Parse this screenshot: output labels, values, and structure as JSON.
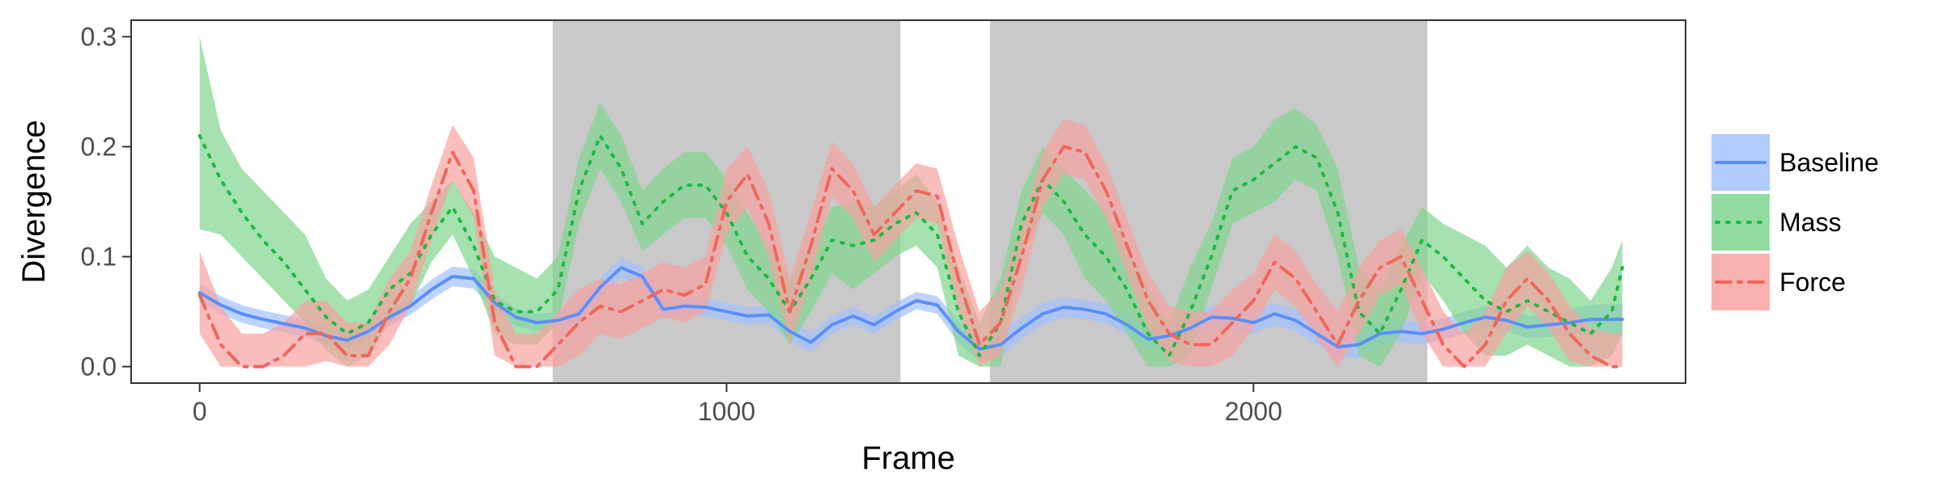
{
  "chart_data": {
    "type": "line",
    "xlabel": "Frame",
    "ylabel": "Divergence",
    "xlim": [
      -130,
      2820
    ],
    "ylim": [
      -0.015,
      0.315
    ],
    "x_ticks": [
      0,
      1000,
      2000
    ],
    "x_tick_labels": [
      "0",
      "1000",
      "2000"
    ],
    "y_ticks": [
      0.0,
      0.1,
      0.2,
      0.3
    ],
    "y_tick_labels": [
      "0.0",
      "0.1",
      "0.2",
      "0.3"
    ],
    "grid": false,
    "legend_position": "right",
    "shaded_regions": [
      {
        "start": 670,
        "end": 1330,
        "color": "#c9c9c9"
      },
      {
        "start": 1500,
        "end": 2330,
        "color": "#c9c9c9"
      }
    ],
    "series": [
      {
        "name": "Baseline",
        "color": "#5b8ff9",
        "band_color": "#a3c2ff",
        "line_style": "solid",
        "x": [
          0,
          40,
          80,
          120,
          160,
          200,
          240,
          280,
          320,
          360,
          400,
          440,
          480,
          520,
          560,
          600,
          640,
          680,
          720,
          760,
          800,
          840,
          880,
          920,
          960,
          1000,
          1040,
          1080,
          1120,
          1160,
          1200,
          1240,
          1280,
          1320,
          1360,
          1400,
          1440,
          1480,
          1520,
          1560,
          1600,
          1640,
          1680,
          1720,
          1760,
          1800,
          1840,
          1880,
          1920,
          1960,
          2000,
          2040,
          2080,
          2120,
          2160,
          2200,
          2240,
          2280,
          2320,
          2360,
          2400,
          2440,
          2480,
          2520,
          2560,
          2600,
          2640,
          2680,
          2700
        ],
        "y": [
          0.067,
          0.056,
          0.048,
          0.043,
          0.039,
          0.035,
          0.028,
          0.024,
          0.032,
          0.045,
          0.055,
          0.07,
          0.082,
          0.08,
          0.058,
          0.045,
          0.04,
          0.042,
          0.048,
          0.072,
          0.09,
          0.082,
          0.052,
          0.055,
          0.054,
          0.05,
          0.046,
          0.047,
          0.032,
          0.022,
          0.038,
          0.046,
          0.038,
          0.05,
          0.06,
          0.056,
          0.032,
          0.016,
          0.02,
          0.035,
          0.048,
          0.054,
          0.052,
          0.048,
          0.038,
          0.025,
          0.028,
          0.035,
          0.045,
          0.044,
          0.04,
          0.048,
          0.042,
          0.03,
          0.018,
          0.02,
          0.03,
          0.032,
          0.03,
          0.034,
          0.04,
          0.045,
          0.042,
          0.036,
          0.038,
          0.04,
          0.043,
          0.043,
          0.043
        ],
        "lower": [
          0.059,
          0.048,
          0.04,
          0.035,
          0.031,
          0.027,
          0.02,
          0.016,
          0.024,
          0.037,
          0.047,
          0.061,
          0.073,
          0.071,
          0.05,
          0.037,
          0.032,
          0.034,
          0.04,
          0.063,
          0.081,
          0.073,
          0.044,
          0.047,
          0.046,
          0.042,
          0.038,
          0.039,
          0.023,
          0.013,
          0.03,
          0.038,
          0.03,
          0.042,
          0.052,
          0.048,
          0.022,
          0.005,
          0.009,
          0.025,
          0.038,
          0.045,
          0.043,
          0.039,
          0.029,
          0.016,
          0.017,
          0.024,
          0.035,
          0.034,
          0.03,
          0.038,
          0.032,
          0.02,
          0.008,
          0.008,
          0.02,
          0.022,
          0.02,
          0.024,
          0.03,
          0.035,
          0.032,
          0.026,
          0.027,
          0.028,
          0.03,
          0.029,
          0.029
        ],
        "upper": [
          0.075,
          0.064,
          0.056,
          0.051,
          0.047,
          0.043,
          0.036,
          0.032,
          0.04,
          0.053,
          0.063,
          0.079,
          0.091,
          0.089,
          0.066,
          0.053,
          0.048,
          0.05,
          0.056,
          0.081,
          0.099,
          0.091,
          0.06,
          0.063,
          0.062,
          0.058,
          0.054,
          0.055,
          0.041,
          0.031,
          0.046,
          0.054,
          0.046,
          0.058,
          0.068,
          0.064,
          0.042,
          0.027,
          0.031,
          0.045,
          0.058,
          0.063,
          0.061,
          0.057,
          0.047,
          0.034,
          0.039,
          0.046,
          0.055,
          0.054,
          0.05,
          0.058,
          0.052,
          0.04,
          0.028,
          0.032,
          0.04,
          0.042,
          0.04,
          0.044,
          0.05,
          0.055,
          0.052,
          0.046,
          0.049,
          0.052,
          0.056,
          0.057,
          0.057
        ]
      },
      {
        "name": "Mass",
        "color": "#1eb843",
        "band_color": "#7fd68f",
        "line_style": "dotted",
        "x": [
          0,
          40,
          80,
          120,
          160,
          200,
          240,
          280,
          320,
          360,
          400,
          440,
          480,
          520,
          560,
          600,
          640,
          680,
          720,
          760,
          800,
          840,
          880,
          920,
          960,
          1000,
          1040,
          1080,
          1120,
          1160,
          1200,
          1240,
          1280,
          1320,
          1360,
          1400,
          1440,
          1480,
          1520,
          1560,
          1600,
          1640,
          1680,
          1720,
          1760,
          1800,
          1840,
          1880,
          1920,
          1960,
          2000,
          2040,
          2080,
          2120,
          2160,
          2200,
          2240,
          2280,
          2320,
          2360,
          2400,
          2440,
          2480,
          2520,
          2560,
          2600,
          2640,
          2680,
          2700
        ],
        "y": [
          0.21,
          0.17,
          0.14,
          0.115,
          0.095,
          0.07,
          0.045,
          0.03,
          0.04,
          0.07,
          0.085,
          0.12,
          0.145,
          0.11,
          0.06,
          0.05,
          0.05,
          0.07,
          0.16,
          0.21,
          0.18,
          0.13,
          0.15,
          0.165,
          0.165,
          0.14,
          0.1,
          0.08,
          0.05,
          0.08,
          0.115,
          0.11,
          0.115,
          0.13,
          0.14,
          0.12,
          0.05,
          0.01,
          0.04,
          0.13,
          0.17,
          0.15,
          0.12,
          0.1,
          0.07,
          0.03,
          0.01,
          0.05,
          0.1,
          0.16,
          0.17,
          0.185,
          0.2,
          0.19,
          0.14,
          0.05,
          0.03,
          0.07,
          0.115,
          0.1,
          0.08,
          0.06,
          0.05,
          0.06,
          0.05,
          0.04,
          0.03,
          0.05,
          0.09
        ],
        "lower": [
          0.125,
          0.12,
          0.1,
          0.08,
          0.06,
          0.04,
          0.015,
          0.0,
          0.01,
          0.04,
          0.055,
          0.095,
          0.12,
          0.08,
          0.03,
          0.02,
          0.02,
          0.04,
          0.13,
          0.18,
          0.15,
          0.105,
          0.12,
          0.135,
          0.135,
          0.11,
          0.07,
          0.05,
          0.02,
          0.05,
          0.085,
          0.07,
          0.085,
          0.1,
          0.11,
          0.09,
          0.01,
          0.0,
          0.0,
          0.1,
          0.14,
          0.12,
          0.08,
          0.06,
          0.03,
          0.0,
          0.0,
          0.01,
          0.07,
          0.13,
          0.14,
          0.15,
          0.17,
          0.16,
          0.1,
          0.01,
          0.0,
          0.03,
          0.085,
          0.06,
          0.03,
          0.01,
          0.01,
          0.02,
          0.01,
          0.0,
          0.0,
          0.01,
          0.03
        ],
        "upper": [
          0.3,
          0.215,
          0.18,
          0.16,
          0.14,
          0.12,
          0.08,
          0.06,
          0.07,
          0.1,
          0.13,
          0.15,
          0.17,
          0.14,
          0.1,
          0.09,
          0.08,
          0.1,
          0.19,
          0.24,
          0.21,
          0.16,
          0.18,
          0.195,
          0.195,
          0.17,
          0.14,
          0.11,
          0.08,
          0.11,
          0.145,
          0.15,
          0.145,
          0.16,
          0.175,
          0.15,
          0.09,
          0.04,
          0.08,
          0.16,
          0.2,
          0.18,
          0.16,
          0.14,
          0.11,
          0.07,
          0.04,
          0.09,
          0.13,
          0.19,
          0.2,
          0.225,
          0.235,
          0.22,
          0.18,
          0.09,
          0.07,
          0.11,
          0.145,
          0.13,
          0.12,
          0.11,
          0.09,
          0.11,
          0.09,
          0.08,
          0.06,
          0.09,
          0.115
        ]
      },
      {
        "name": "Force",
        "color": "#f0665c",
        "band_color": "#f7a3a0",
        "line_style": "dashdot",
        "x": [
          0,
          40,
          80,
          120,
          160,
          200,
          240,
          280,
          320,
          360,
          400,
          440,
          480,
          520,
          560,
          600,
          640,
          680,
          720,
          760,
          800,
          840,
          880,
          920,
          960,
          1000,
          1040,
          1080,
          1120,
          1160,
          1200,
          1240,
          1280,
          1320,
          1360,
          1400,
          1440,
          1480,
          1520,
          1560,
          1600,
          1640,
          1680,
          1720,
          1760,
          1800,
          1840,
          1880,
          1920,
          1960,
          2000,
          2040,
          2080,
          2120,
          2160,
          2200,
          2240,
          2280,
          2320,
          2360,
          2400,
          2440,
          2480,
          2520,
          2560,
          2600,
          2640,
          2680,
          2700
        ],
        "y": [
          0.065,
          0.02,
          0.0,
          0.0,
          0.01,
          0.03,
          0.03,
          0.01,
          0.01,
          0.05,
          0.08,
          0.14,
          0.195,
          0.16,
          0.04,
          0.0,
          0.0,
          0.02,
          0.04,
          0.055,
          0.05,
          0.06,
          0.07,
          0.065,
          0.075,
          0.15,
          0.175,
          0.13,
          0.05,
          0.11,
          0.18,
          0.16,
          0.12,
          0.14,
          0.16,
          0.155,
          0.08,
          0.02,
          0.04,
          0.1,
          0.17,
          0.2,
          0.195,
          0.16,
          0.11,
          0.06,
          0.03,
          0.02,
          0.02,
          0.04,
          0.06,
          0.095,
          0.08,
          0.05,
          0.02,
          0.06,
          0.09,
          0.1,
          0.06,
          0.02,
          0.0,
          0.02,
          0.06,
          0.08,
          0.06,
          0.03,
          0.01,
          0.0,
          0.0
        ],
        "lower": [
          0.03,
          0.0,
          0.0,
          0.0,
          0.0,
          0.0,
          0.005,
          0.0,
          0.0,
          0.02,
          0.055,
          0.115,
          0.17,
          0.135,
          0.01,
          0.0,
          0.0,
          0.0,
          0.01,
          0.03,
          0.025,
          0.035,
          0.045,
          0.04,
          0.05,
          0.12,
          0.145,
          0.1,
          0.02,
          0.08,
          0.155,
          0.135,
          0.095,
          0.115,
          0.135,
          0.13,
          0.05,
          0.0,
          0.01,
          0.07,
          0.145,
          0.175,
          0.17,
          0.135,
          0.085,
          0.035,
          0.005,
          0.0,
          0.0,
          0.01,
          0.035,
          0.07,
          0.055,
          0.025,
          0.0,
          0.03,
          0.065,
          0.075,
          0.03,
          0.0,
          0.0,
          0.0,
          0.03,
          0.055,
          0.035,
          0.005,
          0.0,
          0.0,
          0.0
        ],
        "upper": [
          0.105,
          0.055,
          0.03,
          0.03,
          0.04,
          0.06,
          0.06,
          0.04,
          0.04,
          0.08,
          0.105,
          0.165,
          0.22,
          0.19,
          0.07,
          0.03,
          0.03,
          0.05,
          0.07,
          0.08,
          0.075,
          0.085,
          0.095,
          0.09,
          0.1,
          0.18,
          0.2,
          0.16,
          0.08,
          0.14,
          0.205,
          0.185,
          0.145,
          0.165,
          0.185,
          0.18,
          0.11,
          0.05,
          0.07,
          0.13,
          0.195,
          0.225,
          0.22,
          0.185,
          0.135,
          0.085,
          0.055,
          0.05,
          0.05,
          0.07,
          0.085,
          0.12,
          0.105,
          0.075,
          0.05,
          0.09,
          0.115,
          0.125,
          0.09,
          0.05,
          0.03,
          0.05,
          0.09,
          0.105,
          0.085,
          0.055,
          0.035,
          0.03,
          0.03
        ]
      }
    ]
  }
}
